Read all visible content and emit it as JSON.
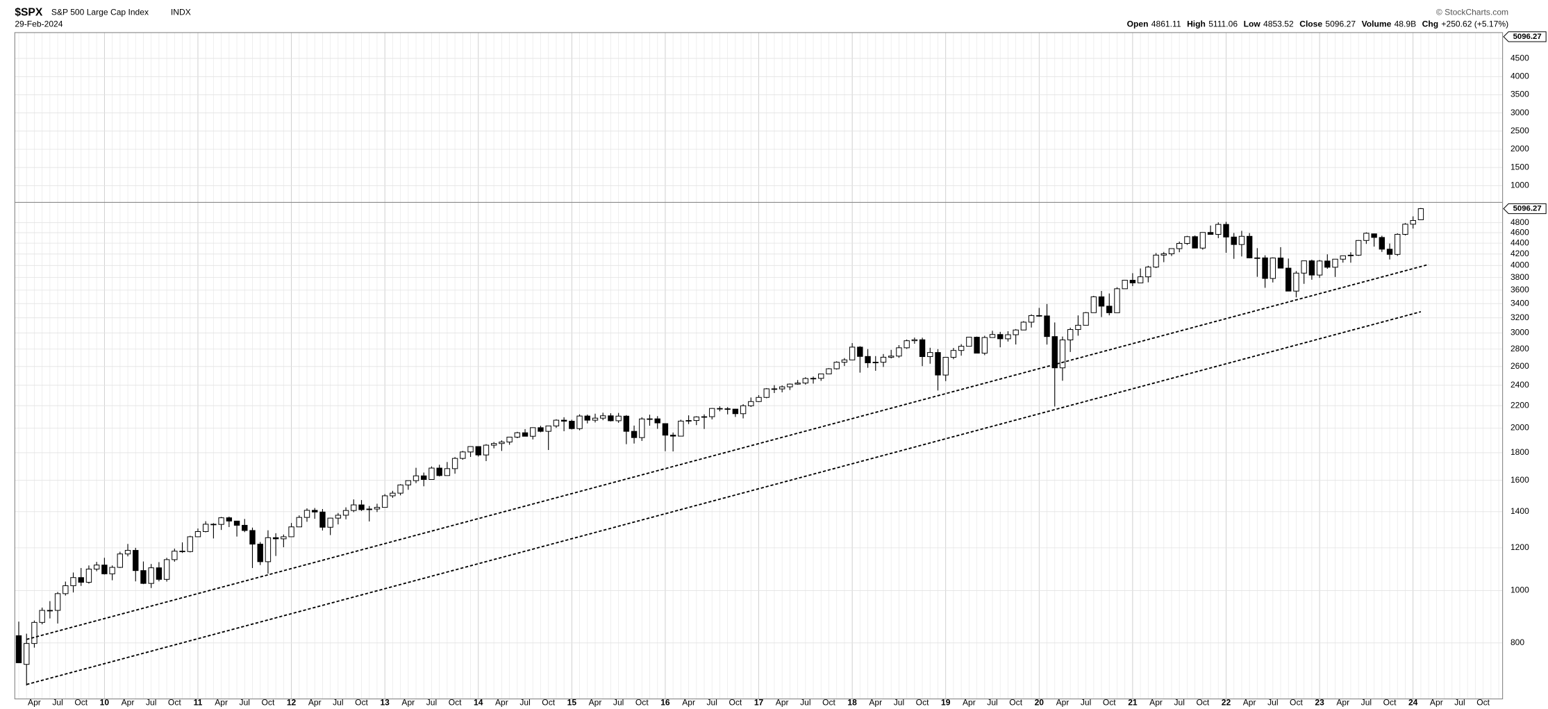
{
  "chart_data": {
    "type": "candlestick",
    "symbol": "$SPX",
    "title": "S&P 500 Large Cap Index",
    "exchange": "INDX",
    "date": "29-Feb-2024",
    "credit": "© StockCharts.com",
    "header": {
      "labels": [
        "Open",
        "High",
        "Low",
        "Close",
        "Volume",
        "Chg"
      ],
      "volume": "48.9B",
      "change": "+250.62 (+5.17%)"
    },
    "categories": [
      null,
      null,
      "Apr",
      null,
      null,
      "Jul",
      null,
      null,
      "Oct",
      null,
      null,
      "10",
      null,
      null,
      "Apr",
      null,
      null,
      "Jul",
      null,
      null,
      "Oct",
      null,
      null,
      "11",
      null,
      null,
      "Apr",
      null,
      null,
      "Jul",
      null,
      null,
      "Oct",
      null,
      null,
      "12",
      null,
      null,
      "Apr",
      null,
      null,
      "Jul",
      null,
      null,
      "Oct",
      null,
      null,
      "13",
      null,
      null,
      "Apr",
      null,
      null,
      "Jul",
      null,
      null,
      "Oct",
      null,
      null,
      "14",
      null,
      null,
      "Apr",
      null,
      null,
      "Jul",
      null,
      null,
      "Oct",
      null,
      null,
      "15",
      null,
      null,
      "Apr",
      null,
      null,
      "Jul",
      null,
      null,
      "Oct",
      null,
      null,
      "16",
      null,
      null,
      "Apr",
      null,
      null,
      "Jul",
      null,
      null,
      "Oct",
      null,
      null,
      "17",
      null,
      null,
      "Apr",
      null,
      null,
      "Jul",
      null,
      null,
      "Oct",
      null,
      null,
      "18",
      null,
      null,
      "Apr",
      null,
      null,
      "Jul",
      null,
      null,
      "Oct",
      null,
      null,
      "19",
      null,
      null,
      "Apr",
      null,
      null,
      "Jul",
      null,
      null,
      "Oct",
      null,
      null,
      "20",
      null,
      null,
      "Apr",
      null,
      null,
      "Jul",
      null,
      null,
      "Oct",
      null,
      null,
      "21",
      null,
      null,
      "Apr",
      null,
      null,
      "Jul",
      null,
      null,
      "Oct",
      null,
      null,
      "22",
      null,
      null,
      "Apr",
      null,
      null,
      "Jul",
      null,
      null,
      "Oct",
      null,
      null,
      "23",
      null,
      null,
      "Apr",
      null,
      null,
      "Jul",
      null,
      null,
      "Oct",
      null,
      null,
      "24",
      null,
      null,
      "Apr",
      null,
      null,
      "Jul",
      null,
      null,
      "Oct",
      null,
      null
    ],
    "open": [
      825,
      730,
      798,
      873,
      919,
      919,
      987,
      1021,
      1057,
      1036,
      1096,
      1115,
      1074,
      1104,
      1169,
      1187,
      1089,
      1031,
      1102,
      1049,
      1141,
      1183,
      1181,
      1258,
      1286,
      1327,
      1326,
      1364,
      1345,
      1321,
      1292,
      1219,
      1131,
      1253,
      1247,
      1258,
      1312,
      1366,
      1408,
      1398,
      1310,
      1362,
      1379,
      1407,
      1441,
      1412,
      1416,
      1426,
      1498,
      1515,
      1569,
      1598,
      1631,
      1606,
      1686,
      1633,
      1682,
      1757,
      1806,
      1848,
      1783,
      1859,
      1872,
      1884,
      1924,
      1960,
      1931,
      2003,
      1972,
      2018,
      2068,
      2059,
      1995,
      2105,
      2068,
      2086,
      2107,
      2063,
      2104,
      1972,
      1920,
      2079,
      2080,
      2038,
      1940,
      1932,
      2060,
      2065,
      2097,
      2099,
      2174,
      2171,
      2168,
      2126,
      2199,
      2239,
      2279,
      2364,
      2363,
      2384,
      2412,
      2423,
      2470,
      2472,
      2519,
      2575,
      2648,
      2674,
      2824,
      2714,
      2641,
      2648,
      2705,
      2718,
      2816,
      2902,
      2914,
      2712,
      2760,
      2507,
      2704,
      2784,
      2834,
      2946,
      2752,
      2942,
      2980,
      2926,
      2977,
      3038,
      3141,
      3231,
      3226,
      2954,
      2585,
      2912,
      3044,
      3100,
      3271,
      3500,
      3363,
      3270,
      3622,
      3756,
      3714,
      3811,
      3973,
      4181,
      4204,
      4298,
      4395,
      4523,
      4308,
      4605,
      4567,
      4766,
      4516,
      4374,
      4530,
      4131,
      4132,
      3785,
      4130,
      3955,
      3586,
      3872,
      4080,
      3840,
      4077,
      3970,
      4109,
      4169,
      4180,
      4450,
      4578,
      4508,
      4288,
      4194,
      4568,
      4770,
      4861.11,
      null,
      null,
      null,
      null,
      null,
      null,
      null,
      null,
      null,
      null
    ],
    "high": [
      876,
      832,
      880,
      930,
      956,
      994,
      1039,
      1080,
      1101,
      1113,
      1130,
      1150,
      1113,
      1180,
      1220,
      1200,
      1132,
      1120,
      1129,
      1150,
      1196,
      1228,
      1263,
      1303,
      1344,
      1333,
      1369,
      1371,
      1346,
      1357,
      1308,
      1230,
      1293,
      1277,
      1270,
      1334,
      1378,
      1420,
      1422,
      1416,
      1364,
      1392,
      1426,
      1475,
      1471,
      1434,
      1448,
      1509,
      1530,
      1574,
      1598,
      1688,
      1654,
      1698,
      1710,
      1730,
      1767,
      1814,
      1849,
      1851,
      1867,
      1884,
      1898,
      1925,
      1968,
      1991,
      2006,
      2019,
      2019,
      2076,
      2094,
      2072,
      2120,
      2118,
      2126,
      2135,
      2130,
      2133,
      2113,
      2021,
      2094,
      2117,
      2104,
      2038,
      1962,
      2072,
      2111,
      2103,
      2120,
      2178,
      2194,
      2187,
      2170,
      2214,
      2278,
      2301,
      2371,
      2401,
      2398,
      2418,
      2454,
      2484,
      2491,
      2520,
      2582,
      2658,
      2695,
      2873,
      2835,
      2801,
      2718,
      2742,
      2791,
      2848,
      2917,
      2941,
      2940,
      2816,
      2800,
      2708,
      2814,
      2860,
      2949,
      2954,
      2964,
      3028,
      3014,
      3022,
      3050,
      3155,
      3248,
      3338,
      3394,
      3137,
      2954,
      3068,
      3233,
      3280,
      3514,
      3588,
      3550,
      3646,
      3760,
      3871,
      3950,
      3995,
      4218,
      4238,
      4302,
      4429,
      4538,
      4546,
      4608,
      4743,
      4808,
      4818,
      4595,
      4637,
      4593,
      4307,
      4177,
      4140,
      4325,
      4120,
      3906,
      4080,
      4101,
      4095,
      4195,
      4110,
      4170,
      4232,
      4458,
      4607,
      4584,
      4541,
      4393,
      4588,
      4793,
      4932,
      5111.06,
      null,
      null,
      null,
      null,
      null,
      null,
      null,
      null,
      null,
      null
    ],
    "low": [
      735,
      667,
      784,
      866,
      888,
      869,
      979,
      992,
      1020,
      1030,
      1086,
      1071,
      1045,
      1101,
      1157,
      1040,
      1028,
      1011,
      1040,
      1039,
      1131,
      1174,
      1177,
      1257,
      1282,
      1249,
      1295,
      1311,
      1259,
      1283,
      1101,
      1115,
      1075,
      1159,
      1203,
      1258,
      1311,
      1341,
      1358,
      1292,
      1267,
      1326,
      1355,
      1397,
      1404,
      1343,
      1398,
      1426,
      1485,
      1501,
      1537,
      1581,
      1560,
      1605,
      1627,
      1633,
      1646,
      1747,
      1768,
      1771,
      1737,
      1834,
      1814,
      1862,
      1915,
      1930,
      1905,
      1964,
      1821,
      2001,
      1973,
      1988,
      1981,
      2040,
      2048,
      2068,
      2057,
      2045,
      1867,
      1872,
      1893,
      2020,
      1993,
      1812,
      1810,
      1932,
      2034,
      2025,
      1992,
      2075,
      2148,
      2120,
      2097,
      2084,
      2188,
      2234,
      2271,
      2322,
      2329,
      2352,
      2405,
      2407,
      2417,
      2446,
      2519,
      2566,
      2605,
      2674,
      2533,
      2586,
      2553,
      2595,
      2691,
      2698,
      2803,
      2865,
      2604,
      2631,
      2347,
      2443,
      2682,
      2723,
      2834,
      2750,
      2729,
      2942,
      2822,
      2892,
      2856,
      3038,
      3070,
      3214,
      2855,
      2192,
      2447,
      2766,
      2965,
      3100,
      3271,
      3210,
      3234,
      3270,
      3622,
      3663,
      3714,
      3723,
      3956,
      4057,
      4165,
      4233,
      4368,
      4306,
      4279,
      4560,
      4495,
      4223,
      4115,
      4157,
      4124,
      3811,
      3637,
      3721,
      3955,
      3585,
      3492,
      3699,
      3764,
      3794,
      3944,
      3809,
      4049,
      4048,
      4167,
      4386,
      4335,
      4238,
      4104,
      4167,
      4546,
      4682,
      4853.52,
      null,
      null,
      null,
      null,
      null,
      null,
      null,
      null,
      null,
      null
    ],
    "close": [
      735,
      798,
      873,
      919,
      919,
      987,
      1021,
      1057,
      1036,
      1096,
      1115,
      1074,
      1104,
      1169,
      1187,
      1089,
      1031,
      1102,
      1049,
      1141,
      1183,
      1181,
      1258,
      1286,
      1327,
      1326,
      1364,
      1345,
      1321,
      1292,
      1219,
      1131,
      1253,
      1247,
      1258,
      1312,
      1366,
      1408,
      1398,
      1310,
      1362,
      1379,
      1407,
      1441,
      1412,
      1416,
      1426,
      1498,
      1515,
      1569,
      1598,
      1631,
      1606,
      1686,
      1633,
      1682,
      1757,
      1806,
      1848,
      1783,
      1859,
      1872,
      1884,
      1924,
      1960,
      1931,
      2003,
      1972,
      2018,
      2068,
      2059,
      1995,
      2105,
      2068,
      2086,
      2107,
      2063,
      2104,
      1972,
      1920,
      2079,
      2080,
      2044,
      1940,
      1932,
      2060,
      2065,
      2097,
      2099,
      2174,
      2171,
      2168,
      2126,
      2199,
      2239,
      2279,
      2364,
      2363,
      2384,
      2412,
      2423,
      2470,
      2472,
      2519,
      2575,
      2648,
      2674,
      2824,
      2714,
      2641,
      2648,
      2705,
      2718,
      2816,
      2902,
      2914,
      2712,
      2760,
      2507,
      2704,
      2784,
      2834,
      2946,
      2752,
      2942,
      2980,
      2926,
      2977,
      3038,
      3141,
      3231,
      3226,
      2954,
      2585,
      2912,
      3044,
      3100,
      3271,
      3500,
      3363,
      3270,
      3622,
      3756,
      3714,
      3811,
      3973,
      4181,
      4204,
      4298,
      4395,
      4523,
      4308,
      4605,
      4567,
      4766,
      4516,
      4374,
      4530,
      4132,
      4132,
      3785,
      4130,
      3955,
      3586,
      3872,
      4080,
      3840,
      4077,
      3970,
      4109,
      4169,
      4180,
      4450,
      4589,
      4508,
      4288,
      4194,
      4568,
      4770,
      4846,
      5096.27,
      null,
      null,
      null,
      null,
      null,
      null,
      null,
      null,
      null,
      null
    ],
    "log_scale": true,
    "grid": true,
    "up_color": "#ffffff",
    "down_color": "#000000",
    "ylim": [
      630,
      5235
    ],
    "yticks": [
      800,
      1000,
      1200,
      1400,
      1600,
      1800,
      2000,
      2200,
      2400,
      2600,
      2800,
      3000,
      3200,
      3400,
      3600,
      3800,
      4000,
      4200,
      4400,
      4600,
      4800
    ],
    "upper_panel": {
      "ylim": [
        540,
        5210
      ],
      "yticks": [
        1000,
        1500,
        2000,
        2500,
        3000,
        3500,
        4000,
        4500
      ]
    },
    "trendlines": [
      {
        "x": [
          1,
          181
        ],
        "values": [
          812,
          4017
        ]
      },
      {
        "x": [
          1,
          180
        ],
        "values": [
          670,
          3284
        ]
      }
    ]
  }
}
